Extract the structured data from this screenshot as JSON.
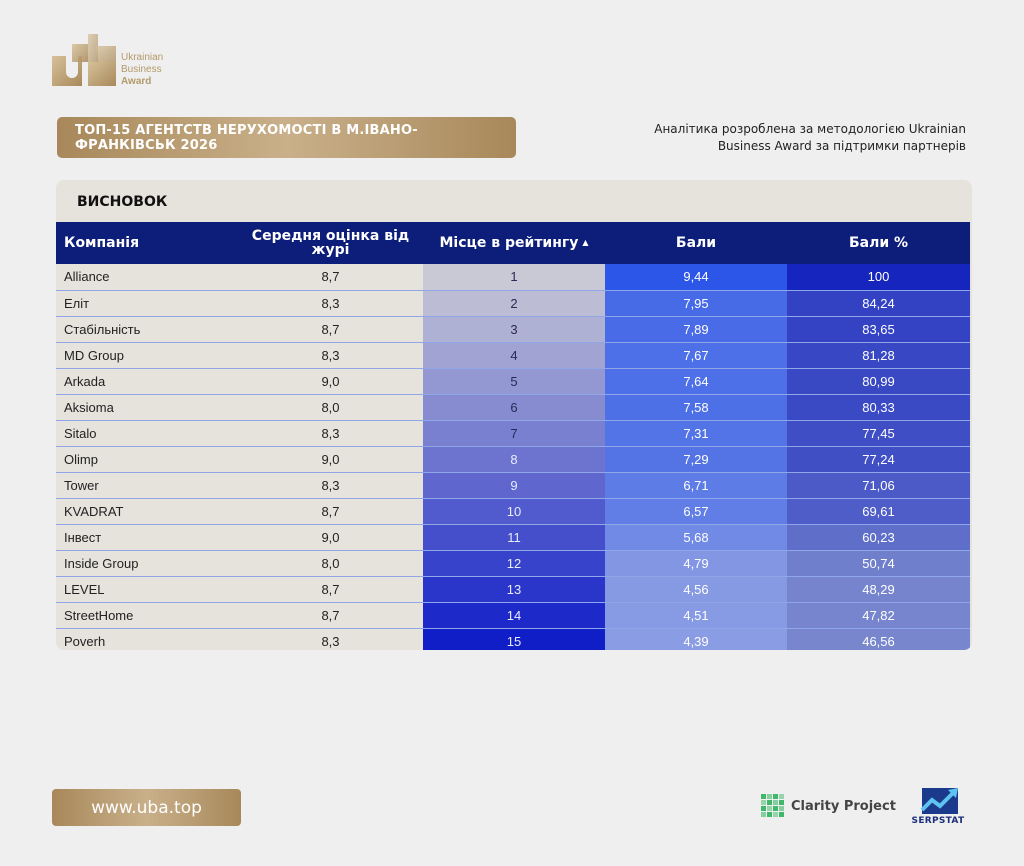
{
  "logo": {
    "line1": "Ukrainian",
    "line2": "Business",
    "line3": "Award"
  },
  "title": "ТОП-15 АГЕНТСТВ НЕРУХОМОСТІ В М.ІВАНО-ФРАНКІВСЬК 2026",
  "note": "Аналітика розроблена за методологією Ukrainian Business Award за підтримки партнерів",
  "section_title": "ВИСНОВОК",
  "table": {
    "headers": {
      "company": "Компанія",
      "score": "Середня оцінка від журі",
      "rank": "Місце в рейтингу",
      "points": "Бали",
      "percent": "Бали %"
    },
    "sort_arrow": "▲",
    "rows": [
      {
        "company": "Alliance",
        "score": "8,7",
        "rank": "1",
        "points": "9,44",
        "percent": "100"
      },
      {
        "company": "Еліт",
        "score": "8,3",
        "rank": "2",
        "points": "7,95",
        "percent": "84,24"
      },
      {
        "company": "Стабільність",
        "score": "8,7",
        "rank": "3",
        "points": "7,89",
        "percent": "83,65"
      },
      {
        "company": "MD Group",
        "score": "8,3",
        "rank": "4",
        "points": "7,67",
        "percent": "81,28"
      },
      {
        "company": "Arkada",
        "score": "9,0",
        "rank": "5",
        "points": "7,64",
        "percent": "80,99"
      },
      {
        "company": "Aksioma",
        "score": "8,0",
        "rank": "6",
        "points": "7,58",
        "percent": "80,33"
      },
      {
        "company": "Sitalo",
        "score": "8,3",
        "rank": "7",
        "points": "7,31",
        "percent": "77,45"
      },
      {
        "company": "Olimp",
        "score": "9,0",
        "rank": "8",
        "points": "7,29",
        "percent": "77,24"
      },
      {
        "company": "Tower",
        "score": "8,3",
        "rank": "9",
        "points": "6,71",
        "percent": "71,06"
      },
      {
        "company": "KVADRAT",
        "score": "8,7",
        "rank": "10",
        "points": "6,57",
        "percent": "69,61"
      },
      {
        "company": "Інвест",
        "score": "9,0",
        "rank": "11",
        "points": "5,68",
        "percent": "60,23"
      },
      {
        "company": "Inside Group",
        "score": "8,0",
        "rank": "12",
        "points": "4,79",
        "percent": "50,74"
      },
      {
        "company": "LEVEL",
        "score": "8,7",
        "rank": "13",
        "points": "4,56",
        "percent": "48,29"
      },
      {
        "company": "StreetHome",
        "score": "8,7",
        "rank": "14",
        "points": "4,51",
        "percent": "47,82"
      },
      {
        "company": "Poverh",
        "score": "8,3",
        "rank": "15",
        "points": "4,39",
        "percent": "46,56"
      }
    ]
  },
  "footer": {
    "website": "www.uba.top",
    "partner1": "Clarity Project",
    "partner2": "SERPSTAT"
  },
  "colors": {
    "gold": "#b49a6a",
    "header_navy": "#0d1d7a",
    "card_bg": "#e6e3dc"
  },
  "icons": [
    "uba-logo-icon",
    "clarity-project-icon",
    "serpstat-icon",
    "sort-asc-icon"
  ]
}
